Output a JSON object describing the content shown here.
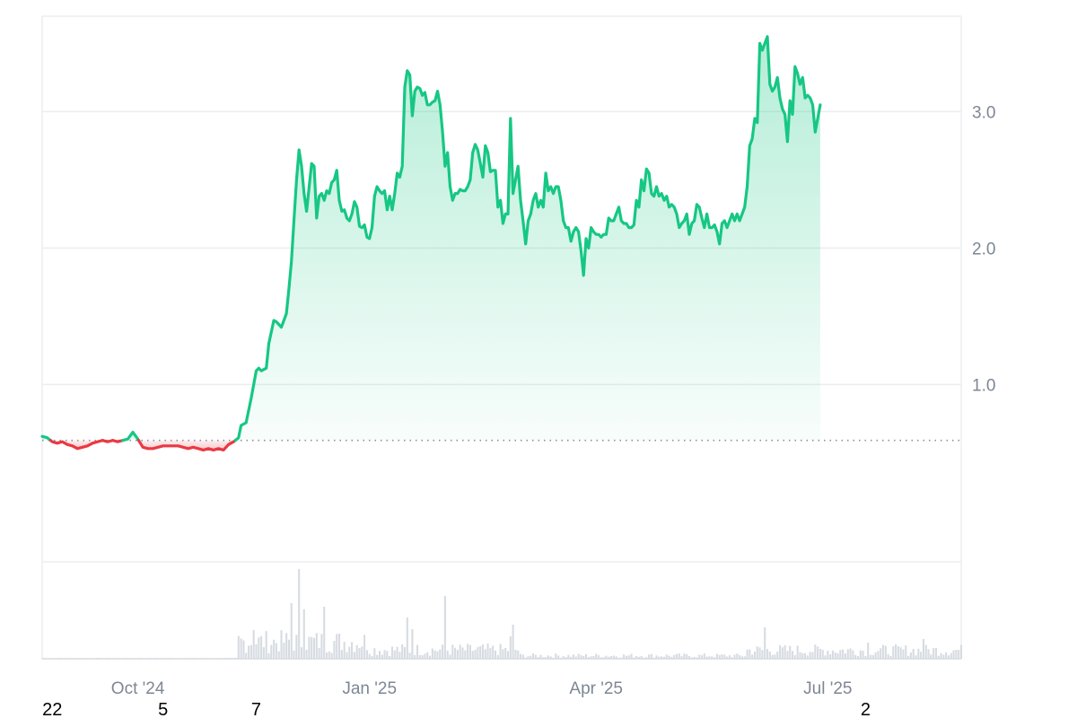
{
  "colors": {
    "up": "#16c784",
    "down": "#ea3943",
    "grid": "#ebedf0",
    "baseline": "#8a919e",
    "volume": "#d7dce2",
    "tick_text": "#7d8795"
  },
  "chart_data": {
    "type": "area",
    "title": "",
    "xlabel": "",
    "ylabel": "",
    "ylim": [
      -0.3,
      3.7
    ],
    "y_ticks": [
      "1.0",
      "2.0",
      "3.0"
    ],
    "y_tick_values": [
      1.0,
      2.0,
      3.0
    ],
    "x_ticks": [
      "Oct '24",
      "Jan '25",
      "Apr '25",
      "Jul '25"
    ],
    "x_tick_days": [
      38,
      130,
      220,
      312
    ],
    "x_range_days": [
      0,
      365
    ],
    "baseline": 0.59,
    "baseline_style": "dotted",
    "grid": "horizontal",
    "stray_labels": [
      "22",
      "5",
      "7",
      "2"
    ],
    "stray_label_days": [
      4,
      48,
      85,
      327
    ],
    "series": [
      {
        "values": [
          [
            0,
            0.62
          ],
          [
            2,
            0.61
          ],
          [
            4,
            0.58
          ],
          [
            6,
            0.57
          ],
          [
            8,
            0.58
          ],
          [
            10,
            0.56
          ],
          [
            12,
            0.55
          ],
          [
            14,
            0.53
          ],
          [
            16,
            0.54
          ],
          [
            18,
            0.55
          ],
          [
            20,
            0.57
          ],
          [
            22,
            0.58
          ],
          [
            24,
            0.59
          ],
          [
            26,
            0.58
          ],
          [
            28,
            0.59
          ],
          [
            30,
            0.58
          ],
          [
            32,
            0.59
          ],
          [
            34,
            0.6
          ],
          [
            36,
            0.65
          ],
          [
            38,
            0.6
          ],
          [
            40,
            0.54
          ],
          [
            42,
            0.53
          ],
          [
            44,
            0.53
          ],
          [
            46,
            0.54
          ],
          [
            48,
            0.55
          ],
          [
            50,
            0.55
          ],
          [
            52,
            0.55
          ],
          [
            54,
            0.55
          ],
          [
            56,
            0.54
          ],
          [
            58,
            0.53
          ],
          [
            60,
            0.54
          ],
          [
            62,
            0.53
          ],
          [
            64,
            0.52
          ],
          [
            66,
            0.53
          ],
          [
            68,
            0.52
          ],
          [
            70,
            0.53
          ],
          [
            72,
            0.52
          ],
          [
            74,
            0.56
          ],
          [
            76,
            0.58
          ],
          [
            78,
            0.61
          ],
          [
            79,
            0.7
          ],
          [
            81,
            0.72
          ],
          [
            83,
            0.9
          ],
          [
            85,
            1.1
          ],
          [
            86,
            1.12
          ],
          [
            87,
            1.1
          ],
          [
            89,
            1.12
          ],
          [
            90,
            1.3
          ],
          [
            92,
            1.47
          ],
          [
            93,
            1.46
          ],
          [
            95,
            1.42
          ],
          [
            97,
            1.52
          ],
          [
            98,
            1.7
          ],
          [
            99,
            1.9
          ],
          [
            100,
            2.2
          ],
          [
            101,
            2.5
          ],
          [
            102,
            2.72
          ],
          [
            103,
            2.6
          ],
          [
            104,
            2.4
          ],
          [
            105,
            2.27
          ],
          [
            107,
            2.62
          ],
          [
            108,
            2.6
          ],
          [
            109,
            2.22
          ],
          [
            110,
            2.38
          ],
          [
            111,
            2.4
          ],
          [
            112,
            2.35
          ],
          [
            113,
            2.42
          ],
          [
            114,
            2.4
          ],
          [
            115,
            2.48
          ],
          [
            116,
            2.5
          ],
          [
            117,
            2.57
          ],
          [
            118,
            2.35
          ],
          [
            119,
            2.27
          ],
          [
            120,
            2.28
          ],
          [
            121,
            2.22
          ],
          [
            122,
            2.2
          ],
          [
            123,
            2.25
          ],
          [
            124,
            2.34
          ],
          [
            125,
            2.3
          ],
          [
            126,
            2.16
          ],
          [
            127,
            2.15
          ],
          [
            128,
            2.17
          ],
          [
            129,
            2.08
          ],
          [
            130,
            2.07
          ],
          [
            131,
            2.15
          ],
          [
            132,
            2.38
          ],
          [
            133,
            2.45
          ],
          [
            134,
            2.42
          ],
          [
            135,
            2.4
          ],
          [
            136,
            2.42
          ],
          [
            137,
            2.28
          ],
          [
            138,
            2.38
          ],
          [
            139,
            2.28
          ],
          [
            140,
            2.4
          ],
          [
            141,
            2.55
          ],
          [
            142,
            2.52
          ],
          [
            143,
            2.6
          ],
          [
            144,
            3.18
          ],
          [
            145,
            3.3
          ],
          [
            146,
            3.27
          ],
          [
            147,
            2.97
          ],
          [
            148,
            3.15
          ],
          [
            149,
            3.18
          ],
          [
            150,
            3.17
          ],
          [
            151,
            3.12
          ],
          [
            152,
            3.14
          ],
          [
            153,
            3.05
          ],
          [
            154,
            3.05
          ],
          [
            155,
            3.07
          ],
          [
            156,
            3.08
          ],
          [
            157,
            3.15
          ],
          [
            158,
            3.05
          ],
          [
            159,
            2.85
          ],
          [
            160,
            2.6
          ],
          [
            161,
            2.7
          ],
          [
            162,
            2.45
          ],
          [
            163,
            2.35
          ],
          [
            164,
            2.4
          ],
          [
            165,
            2.4
          ],
          [
            166,
            2.43
          ],
          [
            167,
            2.42
          ],
          [
            168,
            2.42
          ],
          [
            169,
            2.45
          ],
          [
            170,
            2.5
          ],
          [
            171,
            2.7
          ],
          [
            172,
            2.76
          ],
          [
            173,
            2.72
          ],
          [
            174,
            2.62
          ],
          [
            175,
            2.52
          ],
          [
            176,
            2.75
          ],
          [
            177,
            2.7
          ],
          [
            178,
            2.56
          ],
          [
            179,
            2.57
          ],
          [
            180,
            2.57
          ],
          [
            181,
            2.3
          ],
          [
            182,
            2.35
          ],
          [
            183,
            2.18
          ],
          [
            184,
            2.25
          ],
          [
            185,
            2.25
          ],
          [
            186,
            2.95
          ],
          [
            187,
            2.4
          ],
          [
            188,
            2.5
          ],
          [
            189,
            2.6
          ],
          [
            190,
            2.35
          ],
          [
            191,
            2.2
          ],
          [
            192,
            2.03
          ],
          [
            193,
            2.2
          ],
          [
            194,
            2.25
          ],
          [
            195,
            2.35
          ],
          [
            196,
            2.4
          ],
          [
            197,
            2.3
          ],
          [
            198,
            2.35
          ],
          [
            199,
            2.3
          ],
          [
            200,
            2.55
          ],
          [
            201,
            2.42
          ],
          [
            202,
            2.45
          ],
          [
            203,
            2.4
          ],
          [
            204,
            2.45
          ],
          [
            205,
            2.45
          ],
          [
            206,
            2.35
          ],
          [
            207,
            2.2
          ],
          [
            208,
            2.15
          ],
          [
            209,
            2.15
          ],
          [
            210,
            2.05
          ],
          [
            211,
            2.12
          ],
          [
            212,
            2.15
          ],
          [
            213,
            2.12
          ],
          [
            214,
            1.98
          ],
          [
            215,
            1.8
          ],
          [
            216,
            2.07
          ],
          [
            217,
            2.0
          ],
          [
            218,
            2.15
          ],
          [
            219,
            2.12
          ],
          [
            220,
            2.1
          ],
          [
            221,
            2.1
          ],
          [
            222,
            2.08
          ],
          [
            223,
            2.1
          ],
          [
            224,
            2.1
          ],
          [
            225,
            2.22
          ],
          [
            226,
            2.2
          ],
          [
            227,
            2.2
          ],
          [
            228,
            2.25
          ],
          [
            229,
            2.3
          ],
          [
            230,
            2.2
          ],
          [
            231,
            2.18
          ],
          [
            232,
            2.18
          ],
          [
            233,
            2.15
          ],
          [
            234,
            2.15
          ],
          [
            235,
            2.17
          ],
          [
            236,
            2.35
          ],
          [
            237,
            2.3
          ],
          [
            238,
            2.5
          ],
          [
            239,
            2.42
          ],
          [
            240,
            2.58
          ],
          [
            241,
            2.55
          ],
          [
            242,
            2.4
          ],
          [
            243,
            2.38
          ],
          [
            244,
            2.45
          ],
          [
            245,
            2.38
          ],
          [
            246,
            2.4
          ],
          [
            247,
            2.35
          ],
          [
            248,
            2.38
          ],
          [
            249,
            2.3
          ],
          [
            250,
            2.32
          ],
          [
            251,
            2.3
          ],
          [
            252,
            2.25
          ],
          [
            253,
            2.15
          ],
          [
            254,
            2.18
          ],
          [
            255,
            2.2
          ],
          [
            256,
            2.25
          ],
          [
            257,
            2.1
          ],
          [
            258,
            2.18
          ],
          [
            259,
            2.2
          ],
          [
            260,
            2.32
          ],
          [
            261,
            2.3
          ],
          [
            262,
            2.22
          ],
          [
            263,
            2.15
          ],
          [
            264,
            2.25
          ],
          [
            265,
            2.15
          ],
          [
            266,
            2.15
          ],
          [
            267,
            2.17
          ],
          [
            268,
            2.12
          ],
          [
            269,
            2.03
          ],
          [
            270,
            2.18
          ],
          [
            271,
            2.2
          ],
          [
            272,
            2.15
          ],
          [
            273,
            2.2
          ],
          [
            274,
            2.25
          ],
          [
            275,
            2.2
          ],
          [
            276,
            2.25
          ],
          [
            277,
            2.2
          ],
          [
            278,
            2.25
          ],
          [
            279,
            2.3
          ],
          [
            280,
            2.45
          ],
          [
            281,
            2.75
          ],
          [
            282,
            2.8
          ],
          [
            283,
            2.95
          ],
          [
            284,
            2.92
          ],
          [
            285,
            3.5
          ],
          [
            286,
            3.45
          ],
          [
            287,
            3.5
          ],
          [
            288,
            3.55
          ],
          [
            289,
            3.2
          ],
          [
            290,
            3.15
          ],
          [
            291,
            3.18
          ],
          [
            292,
            3.25
          ],
          [
            293,
            3.1
          ],
          [
            294,
            3.02
          ],
          [
            295,
            2.98
          ],
          [
            296,
            2.78
          ],
          [
            297,
            3.08
          ],
          [
            298,
            2.98
          ],
          [
            299,
            3.33
          ],
          [
            300,
            3.28
          ],
          [
            301,
            3.2
          ],
          [
            302,
            3.25
          ],
          [
            303,
            3.1
          ],
          [
            304,
            3.12
          ],
          [
            305,
            3.1
          ],
          [
            306,
            3.05
          ],
          [
            307,
            2.85
          ],
          [
            308,
            2.95
          ],
          [
            309,
            3.05
          ]
        ]
      }
    ],
    "volume": {
      "ylim": [
        0,
        100
      ],
      "spikes": [
        [
          102,
          100
        ],
        [
          84,
          32
        ],
        [
          99,
          62
        ],
        [
          104,
          55
        ],
        [
          112,
          58
        ],
        [
          145,
          46
        ],
        [
          160,
          70
        ],
        [
          147,
          33
        ],
        [
          186,
          25
        ],
        [
          187,
          38
        ],
        [
          287,
          35
        ],
        [
          328,
          18
        ],
        [
          350,
          22
        ]
      ]
    }
  }
}
